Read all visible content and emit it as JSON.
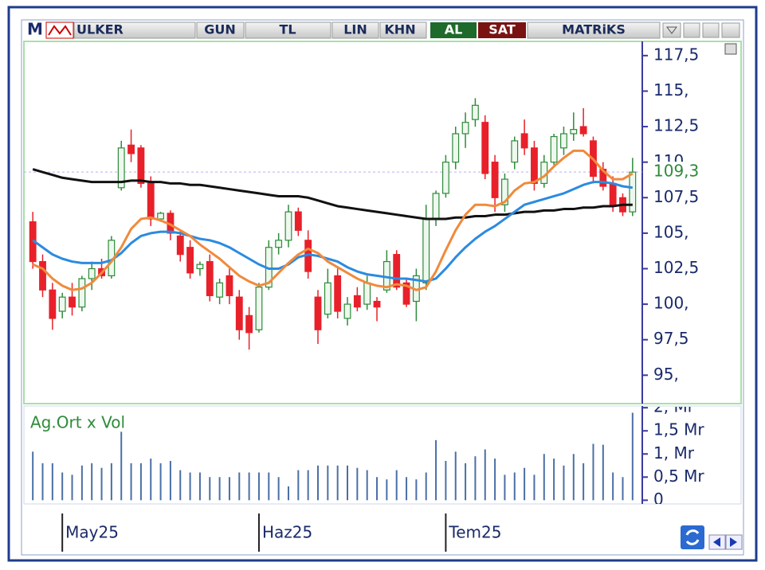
{
  "toolbar": {
    "logo": "M",
    "symbol": "ULKER",
    "period": "GUN",
    "currency": "TL",
    "scale": "LIN",
    "mode": "KHN",
    "buy": "AL",
    "sell": "SAT",
    "brand": "MATRiKS"
  },
  "chart_data": {
    "type": "candlestick",
    "categories": [
      null,
      null,
      null,
      "May25",
      null,
      null,
      null,
      null,
      null,
      null,
      null,
      null,
      null,
      null,
      null,
      null,
      null,
      null,
      null,
      null,
      null,
      null,
      null,
      "Haz25",
      null,
      null,
      null,
      null,
      null,
      null,
      null,
      null,
      null,
      null,
      null,
      null,
      null,
      null,
      null,
      null,
      null,
      null,
      "Tem25",
      null,
      null,
      null,
      null,
      null,
      null,
      null,
      null,
      null,
      null,
      null,
      null,
      null,
      null,
      null,
      null,
      null,
      null,
      null
    ],
    "open": [
      105.8,
      103.0,
      101.0,
      99.5,
      100.5,
      99.8,
      101.8,
      102.5,
      102.0,
      108.2,
      111.2,
      111.0,
      108.6,
      106.0,
      106.4,
      104.8,
      104.0,
      102.5,
      103.0,
      100.5,
      102.0,
      100.5,
      99.2,
      98.2,
      101.2,
      104.0,
      104.5,
      106.5,
      104.5,
      100.5,
      99.3,
      102.0,
      99.0,
      100.6,
      100.0,
      100.2,
      101.0,
      103.5,
      101.5,
      100.2,
      101.5,
      106.0,
      107.8,
      110.0,
      112.0,
      113.0,
      112.8,
      110.0,
      107.0,
      110.0,
      112.0,
      111.0,
      108.5,
      110.0,
      111.0,
      112.0,
      112.5,
      111.5,
      109.5,
      108.5,
      107.5,
      106.5
    ],
    "high": [
      106.5,
      103.5,
      101.5,
      100.8,
      101.5,
      102.0,
      103.0,
      103.2,
      104.8,
      111.5,
      112.3,
      111.2,
      109.0,
      106.5,
      106.6,
      105.2,
      104.5,
      103.0,
      103.5,
      101.8,
      102.5,
      101.0,
      99.8,
      101.5,
      104.5,
      105.0,
      107.0,
      106.8,
      105.2,
      101.0,
      102.5,
      102.5,
      100.5,
      101.2,
      102.0,
      100.5,
      103.8,
      103.8,
      101.8,
      102.5,
      107.0,
      108.0,
      110.5,
      112.5,
      113.5,
      114.5,
      113.3,
      110.5,
      109.2,
      111.8,
      113.0,
      111.5,
      110.5,
      112.0,
      112.5,
      113.5,
      113.8,
      111.8,
      110.0,
      109.0,
      107.8,
      110.3
    ],
    "low": [
      102.5,
      100.5,
      98.2,
      99.0,
      99.2,
      99.5,
      101.0,
      101.8,
      101.8,
      108.0,
      110.0,
      108.2,
      105.5,
      105.8,
      104.5,
      103.0,
      101.8,
      102.0,
      100.2,
      100.0,
      100.0,
      97.5,
      96.8,
      98.0,
      101.0,
      103.5,
      104.0,
      104.8,
      101.8,
      97.2,
      99.0,
      99.0,
      98.5,
      99.5,
      99.6,
      98.8,
      100.8,
      101.0,
      99.8,
      98.8,
      101.0,
      105.5,
      107.5,
      109.5,
      111.0,
      112.5,
      108.8,
      106.5,
      106.5,
      109.5,
      110.5,
      108.0,
      108.2,
      109.8,
      110.5,
      111.5,
      111.8,
      108.5,
      108.0,
      106.5,
      106.2,
      106.2
    ],
    "close": [
      103.0,
      101.0,
      99.0,
      100.5,
      99.8,
      101.8,
      102.5,
      102.0,
      104.5,
      111.0,
      110.6,
      108.5,
      106.0,
      106.4,
      105.0,
      103.5,
      102.2,
      102.8,
      100.6,
      101.5,
      100.6,
      98.2,
      98.0,
      101.2,
      104.0,
      104.5,
      106.5,
      105.2,
      102.3,
      98.2,
      101.5,
      99.5,
      100.0,
      99.8,
      101.5,
      99.8,
      103.0,
      101.2,
      100.0,
      102.0,
      106.0,
      107.8,
      110.0,
      112.0,
      112.8,
      114.0,
      109.2,
      107.5,
      108.8,
      111.5,
      111.0,
      108.5,
      110.0,
      111.8,
      112.0,
      112.3,
      112.0,
      109.0,
      108.3,
      107.0,
      106.5,
      109.3
    ],
    "up_color": "#2e8b3a",
    "down_color": "#e8202a",
    "overlays": [
      {
        "color": "#111111",
        "values": [
          109.5,
          109.3,
          109.1,
          108.9,
          108.8,
          108.7,
          108.6,
          108.6,
          108.6,
          108.6,
          108.7,
          108.7,
          108.6,
          108.6,
          108.5,
          108.5,
          108.4,
          108.4,
          108.3,
          108.2,
          108.1,
          108.0,
          107.9,
          107.8,
          107.7,
          107.6,
          107.6,
          107.6,
          107.5,
          107.3,
          107.1,
          106.9,
          106.8,
          106.7,
          106.6,
          106.5,
          106.4,
          106.3,
          106.2,
          106.1,
          106.0,
          106.0,
          106.0,
          106.1,
          106.1,
          106.2,
          106.2,
          106.3,
          106.3,
          106.4,
          106.5,
          106.5,
          106.6,
          106.6,
          106.7,
          106.7,
          106.8,
          106.8,
          106.9,
          106.9,
          107.0,
          107.0
        ]
      },
      {
        "color": "#2b8be0",
        "values": [
          104.5,
          104.0,
          103.5,
          103.2,
          103.0,
          102.9,
          102.9,
          102.9,
          103.1,
          103.6,
          104.3,
          104.8,
          105.0,
          105.1,
          105.1,
          105.0,
          104.8,
          104.6,
          104.5,
          104.3,
          104.0,
          103.6,
          103.2,
          102.8,
          102.5,
          102.5,
          102.8,
          103.3,
          103.5,
          103.4,
          103.2,
          103.0,
          102.6,
          102.3,
          102.1,
          102.0,
          101.9,
          101.8,
          101.8,
          101.7,
          101.6,
          101.8,
          102.5,
          103.3,
          104.0,
          104.6,
          105.1,
          105.5,
          106.0,
          106.5,
          107.0,
          107.2,
          107.4,
          107.6,
          107.8,
          108.1,
          108.4,
          108.6,
          108.6,
          108.5,
          108.3,
          108.2
        ]
      },
      {
        "color": "#f08a3c",
        "values": [
          102.8,
          102.5,
          101.8,
          101.3,
          101.0,
          101.1,
          101.5,
          102.2,
          103.0,
          104.0,
          105.3,
          106.0,
          106.1,
          105.9,
          105.6,
          105.2,
          104.8,
          104.2,
          103.7,
          103.2,
          102.6,
          102.0,
          101.6,
          101.3,
          101.5,
          102.2,
          102.9,
          103.5,
          103.9,
          103.6,
          103.0,
          102.6,
          102.2,
          101.8,
          101.5,
          101.3,
          101.2,
          101.4,
          101.3,
          101.0,
          101.2,
          102.3,
          103.8,
          105.2,
          106.3,
          107.0,
          107.0,
          106.9,
          107.2,
          108.0,
          108.5,
          108.6,
          109.0,
          109.7,
          110.3,
          110.8,
          110.8,
          110.2,
          109.4,
          108.8,
          108.8,
          109.2
        ]
      }
    ],
    "last": {
      "value": 109.3,
      "label": "109,3",
      "color": "#2e8b3a"
    },
    "ylim": [
      93,
      118.5
    ],
    "yticks": [
      {
        "value": 95,
        "label": "95,"
      },
      {
        "value": 97.5,
        "label": "97,5"
      },
      {
        "value": 100,
        "label": "100,"
      },
      {
        "value": 102.5,
        "label": "102,5"
      },
      {
        "value": 105,
        "label": "105,"
      },
      {
        "value": 107.5,
        "label": "107,5"
      },
      {
        "value": 110,
        "label": "110,"
      },
      {
        "value": 112.5,
        "label": "112,5"
      },
      {
        "value": 115,
        "label": "115,"
      },
      {
        "value": 117.5,
        "label": "117,5"
      }
    ],
    "volume": {
      "title": "Ag.Ort x Vol",
      "color": "#4a6fa5",
      "values": [
        1.05,
        0.8,
        0.8,
        0.6,
        0.55,
        0.75,
        0.8,
        0.7,
        0.8,
        1.48,
        0.8,
        0.8,
        0.9,
        0.8,
        0.85,
        0.65,
        0.6,
        0.6,
        0.5,
        0.5,
        0.5,
        0.6,
        0.6,
        0.6,
        0.6,
        0.5,
        0.3,
        0.65,
        0.65,
        0.75,
        0.75,
        0.75,
        0.75,
        0.7,
        0.65,
        0.5,
        0.45,
        0.65,
        0.5,
        0.45,
        0.6,
        1.3,
        0.85,
        1.05,
        0.8,
        0.95,
        1.1,
        0.9,
        0.55,
        0.6,
        0.7,
        0.55,
        1.0,
        0.9,
        0.75,
        1.0,
        0.8,
        1.22,
        1.2,
        0.6,
        0.5,
        1.89
      ],
      "ylim": [
        -0.08,
        2.02
      ],
      "yticks": [
        0,
        {
          "value": 0.5,
          "label": "0,5 Mr"
        },
        {
          "value": 1,
          "label": "1, Mr"
        },
        {
          "value": 1.5,
          "label": "1,5 Mr"
        },
        {
          "value": 2,
          "label": "2, Mr"
        }
      ]
    }
  }
}
